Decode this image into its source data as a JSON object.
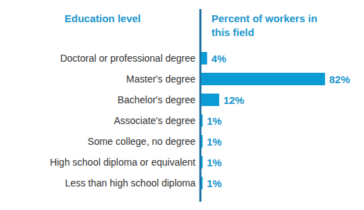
{
  "chart_data": {
    "type": "bar",
    "orientation": "horizontal",
    "title": "Percent of workers in this field",
    "ylabel": "Education level",
    "categories": [
      "Doctoral or professional degree",
      "Master's degree",
      "Bachelor's degree",
      "Associate's degree",
      "Some college, no degree",
      "High school diploma or equivalent",
      "Less than high school diploma"
    ],
    "values": [
      4,
      82,
      12,
      1,
      1,
      1,
      1
    ],
    "value_labels": [
      "4%",
      "82%",
      "12%",
      "1%",
      "1%",
      "1%",
      "1%"
    ],
    "color": "#0a9ad4",
    "data_labels": true,
    "tick_labels": "y"
  }
}
